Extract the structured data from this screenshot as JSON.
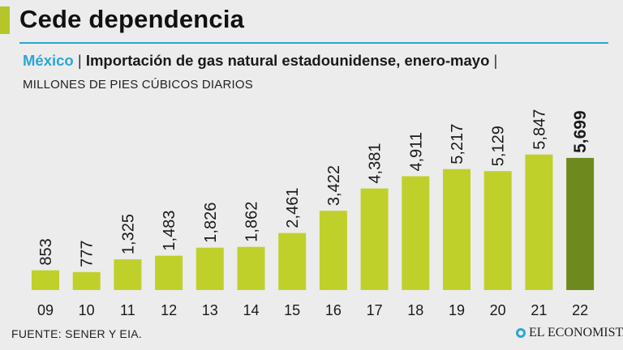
{
  "header": {
    "title": "Cede dependencia",
    "subtitle_country": "México",
    "subtitle_sep1": "|",
    "subtitle_text": "Importación de gas natural estadounidense, enero-mayo",
    "subtitle_sep2": "|",
    "units": "MILLONES DE PIES CÚBICOS DIARIOS"
  },
  "footer": {
    "source": "FUENTE: SENER Y EIA.",
    "brand": "EL ECONOMISTA"
  },
  "colors": {
    "accent": "#b5c62b",
    "bar": "#c0d02b",
    "bar_highlight": "#6e8a1e",
    "rule": "#2aa7d6"
  },
  "chart_data": {
    "type": "bar",
    "title": "Importación de gas natural estadounidense, enero-mayo",
    "ylabel": "MILLONES DE PIES CÚBICOS DIARIOS",
    "xlabel": "",
    "ylim": [
      0,
      6500
    ],
    "grid": false,
    "categories": [
      "09",
      "10",
      "11",
      "12",
      "13",
      "14",
      "15",
      "16",
      "17",
      "18",
      "19",
      "20",
      "21",
      "22"
    ],
    "values": [
      853,
      777,
      1325,
      1483,
      1826,
      1862,
      2461,
      3422,
      4381,
      4911,
      5217,
      5129,
      5847,
      5699
    ],
    "value_labels": [
      "853",
      "777",
      "1,325",
      "1,483",
      "1,826",
      "1,862",
      "2,461",
      "3,422",
      "4,381",
      "4,911",
      "5,217",
      "5,129",
      "5,847",
      "5,699"
    ],
    "highlight_index": 13
  }
}
